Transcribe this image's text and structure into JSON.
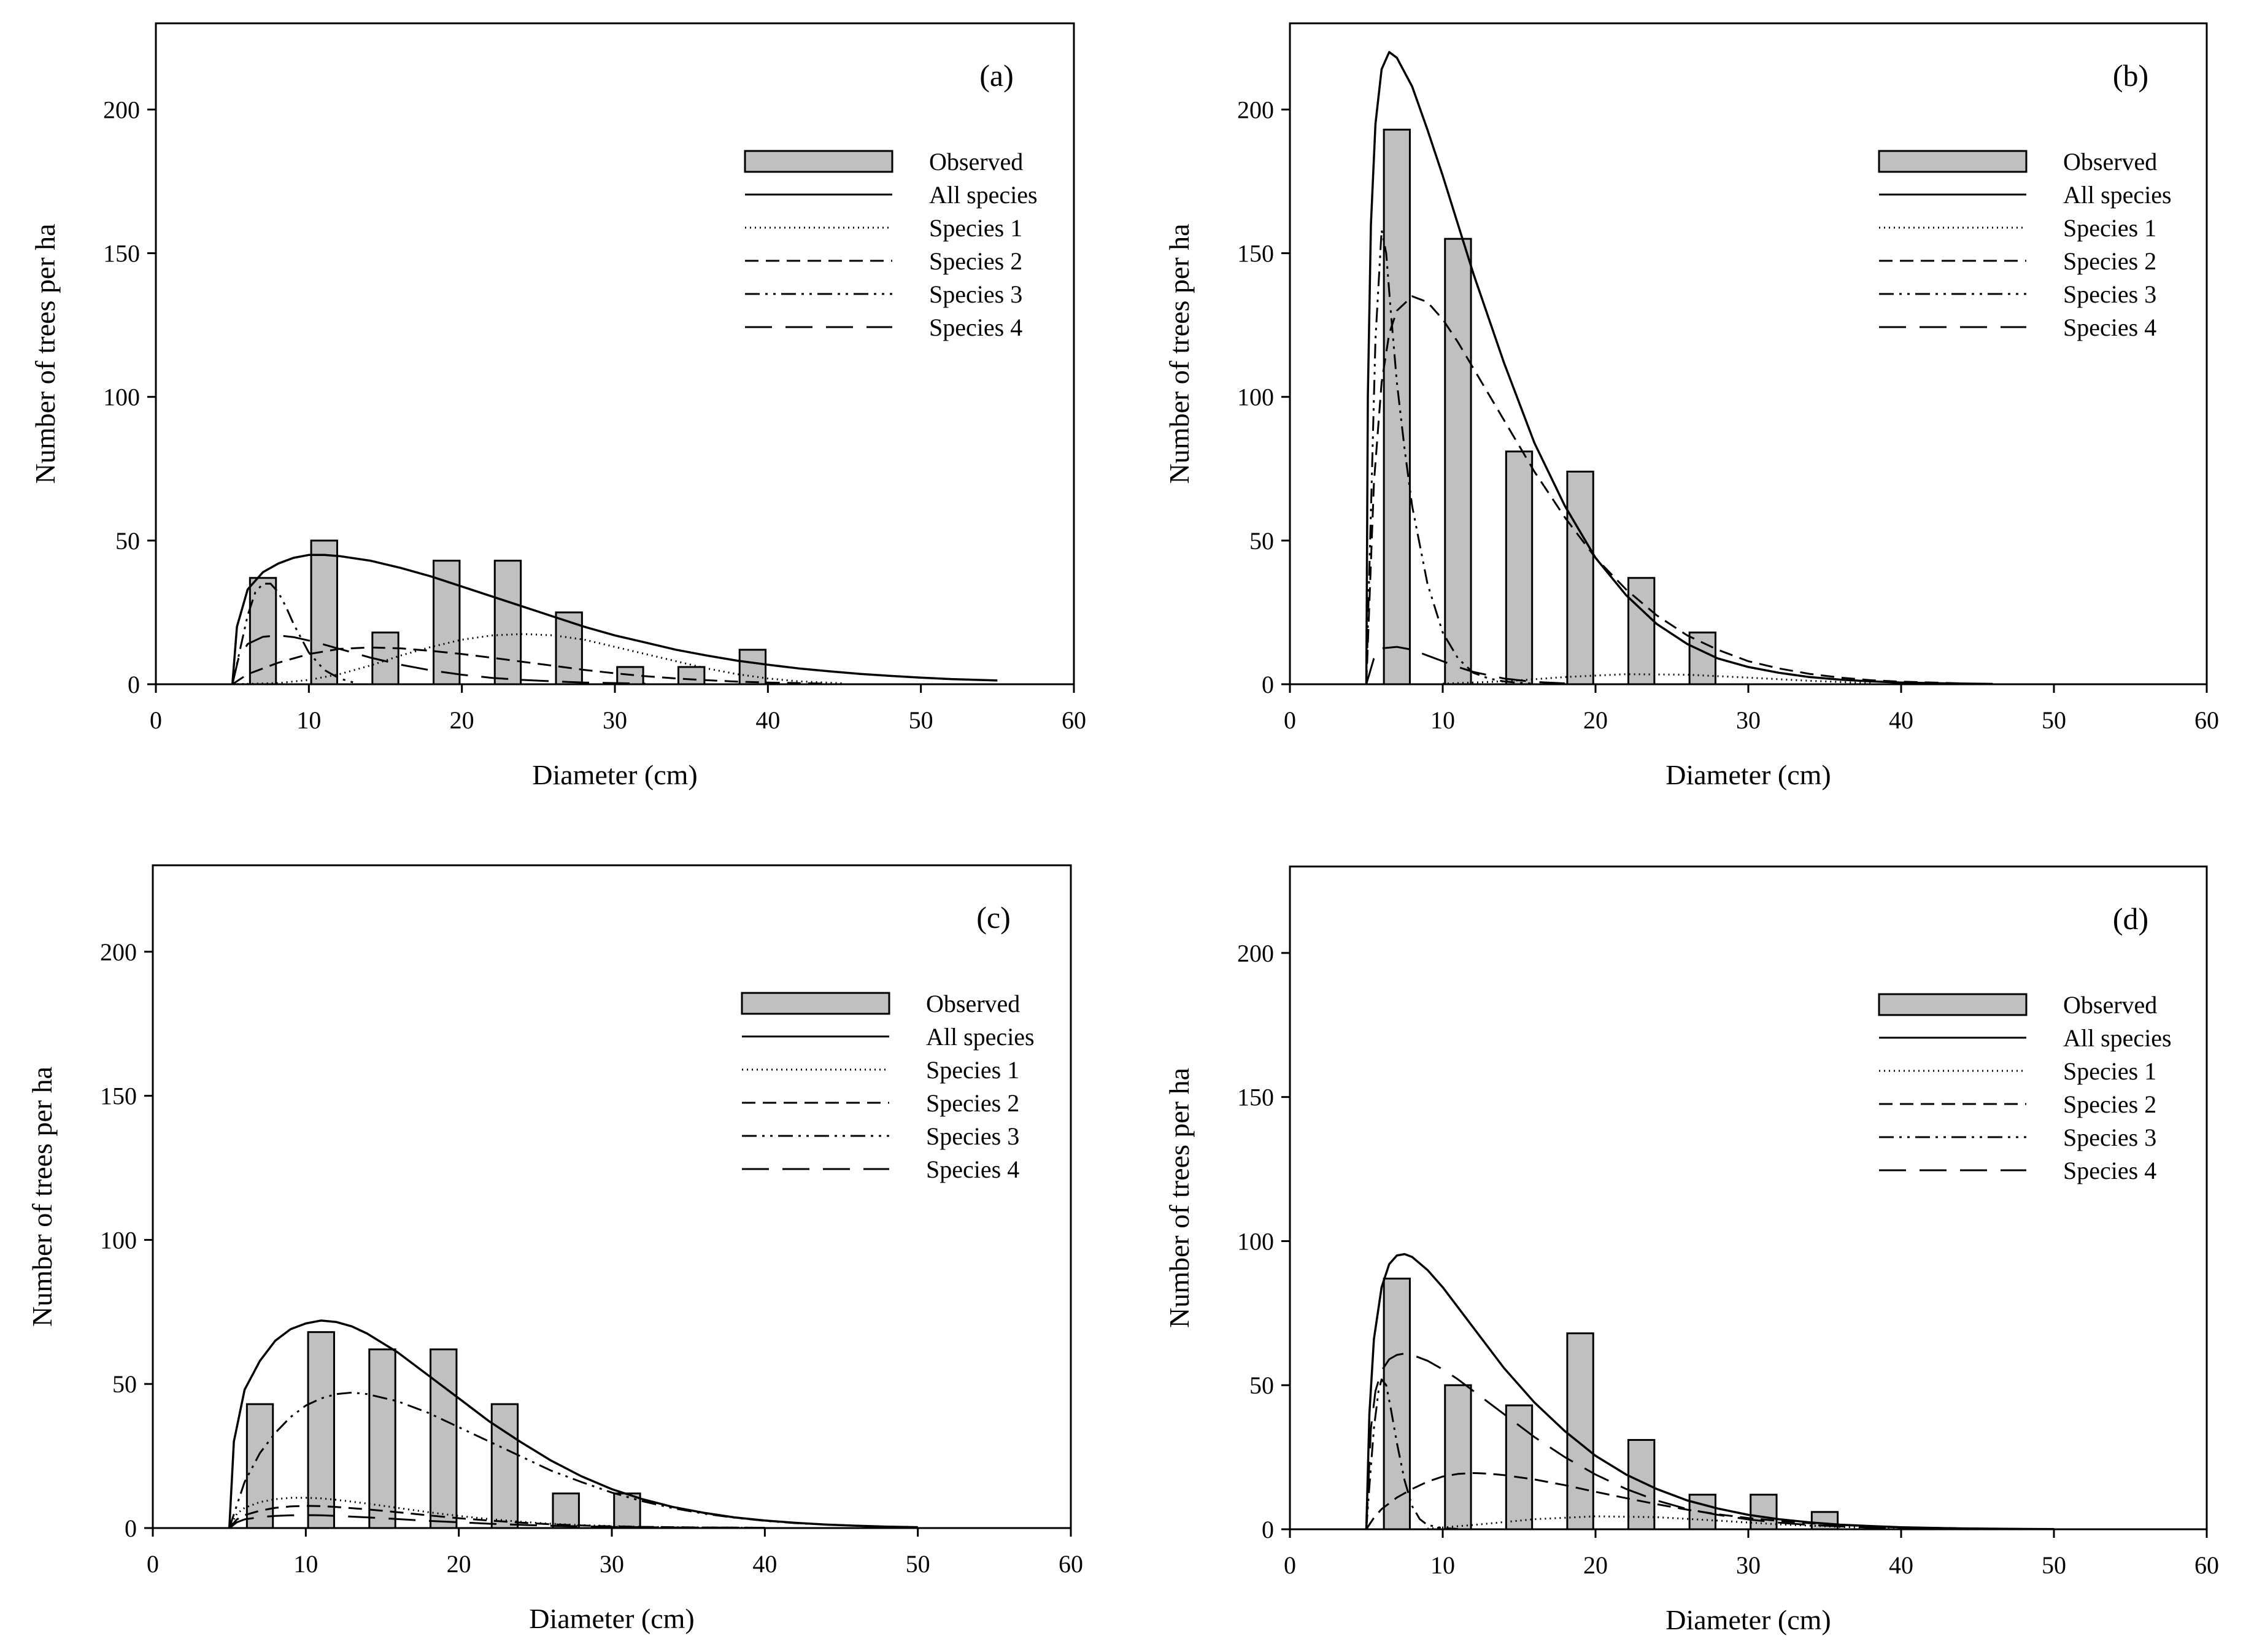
{
  "figure": {
    "legend_labels": [
      "Observed",
      "All species",
      "Species 1",
      "Species 2",
      "Species 3",
      "Species 4"
    ]
  },
  "chart_data": [
    {
      "type": "bar",
      "panel_label": "(a)",
      "xlabel": "Diameter (cm)",
      "ylabel": "Number of trees per ha",
      "xlim": [
        0,
        60
      ],
      "ylim": [
        0,
        230
      ],
      "xticks": [
        0,
        10,
        20,
        30,
        40,
        50,
        60
      ],
      "yticks": [
        0,
        50,
        100,
        150,
        200
      ],
      "legend": "top-right",
      "observed": {
        "x": [
          7,
          11,
          15,
          19,
          23,
          27,
          31,
          35,
          39
        ],
        "values": [
          37,
          50,
          18,
          43,
          43,
          25,
          6,
          6,
          12
        ]
      },
      "series": [
        {
          "name": "All species",
          "x": [
            5,
            5.3,
            6,
            7,
            8,
            9,
            10,
            11,
            12,
            14,
            16,
            18,
            20,
            22,
            24,
            26,
            28,
            30,
            32,
            34,
            36,
            38,
            40,
            42,
            44,
            46,
            48,
            50,
            52,
            55
          ],
          "values": [
            0,
            20,
            33,
            39,
            42,
            44,
            45,
            45,
            44.6,
            43,
            40.5,
            37.5,
            34,
            30.5,
            27,
            23.5,
            20,
            17,
            14.5,
            12,
            10,
            8.2,
            6.8,
            5.5,
            4.5,
            3.6,
            2.9,
            2.3,
            1.8,
            1.3
          ]
        },
        {
          "name": "Species 1",
          "x": [
            5,
            8,
            10,
            12,
            14,
            16,
            18,
            20,
            22,
            24,
            26,
            28,
            30,
            32,
            34,
            36,
            38,
            40,
            42,
            45
          ],
          "values": [
            0,
            0.4,
            1.5,
            3.5,
            6.5,
            10,
            13,
            15.5,
            17,
            17.5,
            17,
            15.5,
            13,
            10.5,
            8,
            5.5,
            3.5,
            2,
            1,
            0.3
          ]
        },
        {
          "name": "Species 2",
          "x": [
            5,
            6,
            8,
            10,
            12,
            14,
            16,
            18,
            20,
            22,
            24,
            26,
            28,
            30,
            32,
            34,
            36,
            38,
            40,
            44
          ],
          "values": [
            0,
            3.5,
            7.5,
            10.5,
            12.3,
            12.8,
            12.5,
            11.6,
            10.5,
            9.2,
            7.8,
            6.4,
            5,
            3.8,
            2.8,
            2,
            1.4,
            0.9,
            0.6,
            0.2
          ]
        },
        {
          "name": "Species 3",
          "x": [
            5,
            5.5,
            6,
            6.5,
            7,
            7.5,
            8,
            8.5,
            9,
            10,
            11,
            12,
            13
          ],
          "values": [
            0,
            12,
            24,
            32,
            35,
            35,
            32,
            27,
            21,
            11,
            5,
            2,
            0.5
          ]
        },
        {
          "name": "Species 4",
          "x": [
            5,
            5.4,
            6,
            7,
            8,
            9,
            10,
            11,
            12,
            14,
            16,
            18,
            20,
            22,
            24,
            26,
            28,
            30,
            32
          ],
          "values": [
            0,
            9,
            14,
            16.5,
            17,
            16.4,
            15.2,
            13.8,
            12.3,
            9.3,
            6.8,
            4.8,
            3.3,
            2.2,
            1.5,
            1,
            0.6,
            0.4,
            0.2
          ]
        }
      ]
    },
    {
      "type": "bar",
      "panel_label": "(b)",
      "xlabel": "Diameter (cm)",
      "ylabel": "Number of trees per ha",
      "xlim": [
        0,
        60
      ],
      "ylim": [
        0,
        230
      ],
      "xticks": [
        0,
        10,
        20,
        30,
        40,
        50,
        60
      ],
      "yticks": [
        0,
        50,
        100,
        150,
        200
      ],
      "legend": "top-right",
      "observed": {
        "x": [
          7,
          11,
          15,
          19,
          23,
          27
        ],
        "values": [
          193,
          155,
          81,
          74,
          37,
          18
        ]
      },
      "series": [
        {
          "name": "All species",
          "x": [
            5,
            5.1,
            5.3,
            5.6,
            6,
            6.5,
            7,
            8,
            9,
            10,
            11,
            12,
            14,
            16,
            18,
            20,
            22,
            24,
            26,
            28,
            30,
            32,
            34,
            36,
            38,
            40,
            43,
            46
          ],
          "values": [
            0,
            100,
            160,
            195,
            214,
            220,
            218,
            208,
            193,
            177,
            160,
            143,
            112,
            84,
            62,
            44,
            31,
            21,
            14,
            9,
            6,
            4,
            2.5,
            1.6,
            1,
            0.6,
            0.3,
            0.1
          ]
        },
        {
          "name": "Species 1",
          "x": [
            10,
            14,
            18,
            22,
            26,
            30,
            34,
            38
          ],
          "values": [
            0.2,
            1,
            2.5,
            3.5,
            3.3,
            2.3,
            1.2,
            0.4
          ]
        },
        {
          "name": "Species 2",
          "x": [
            5,
            5.5,
            6,
            6.5,
            7,
            8,
            9,
            10,
            11,
            12,
            14,
            16,
            18,
            20,
            22,
            24,
            26,
            28,
            30,
            32,
            34,
            36,
            38,
            40,
            44
          ],
          "values": [
            0,
            70,
            105,
            122,
            130,
            135,
            133,
            127,
            119,
            110,
            92,
            74,
            58,
            44,
            33,
            24,
            17,
            12,
            8,
            5.5,
            3.6,
            2.3,
            1.4,
            0.9,
            0.3
          ]
        },
        {
          "name": "Species 3",
          "x": [
            5,
            5.3,
            5.6,
            6,
            6.3,
            6.6,
            7,
            7.5,
            8,
            9,
            10,
            11,
            12,
            13,
            14,
            15,
            16
          ],
          "values": [
            0,
            60,
            120,
            158,
            150,
            130,
            105,
            82,
            62,
            35,
            18,
            9,
            4,
            2,
            1,
            0.5,
            0.2
          ]
        },
        {
          "name": "Species 4",
          "x": [
            5,
            5.5,
            6,
            7,
            8,
            9,
            10,
            11,
            12,
            14,
            16,
            18
          ],
          "values": [
            0,
            9,
            12.5,
            13,
            12,
            10,
            8,
            6,
            4.3,
            2,
            0.8,
            0.3
          ]
        }
      ]
    },
    {
      "type": "bar",
      "panel_label": "(c)",
      "xlabel": "Diameter (cm)",
      "ylabel": "Number of trees per ha",
      "xlim": [
        0,
        60
      ],
      "ylim": [
        0,
        230
      ],
      "xticks": [
        0,
        10,
        20,
        30,
        40,
        50,
        60
      ],
      "yticks": [
        0,
        50,
        100,
        150,
        200
      ],
      "legend": "top-right",
      "observed": {
        "x": [
          7,
          11,
          15,
          19,
          23,
          27,
          31
        ],
        "values": [
          43,
          68,
          62,
          62,
          43,
          12,
          12
        ]
      },
      "series": [
        {
          "name": "All species",
          "x": [
            5,
            5.3,
            6,
            7,
            8,
            9,
            10,
            11,
            12,
            13,
            14,
            16,
            18,
            20,
            22,
            24,
            26,
            28,
            30,
            32,
            34,
            36,
            38,
            40,
            42,
            44,
            46,
            48,
            50
          ],
          "values": [
            0,
            30,
            48,
            58,
            65,
            69,
            71,
            72,
            71.5,
            70,
            67.5,
            61,
            53,
            45,
            37,
            30,
            23.5,
            18,
            13.5,
            10,
            7.3,
            5.3,
            3.7,
            2.6,
            1.8,
            1.2,
            0.8,
            0.5,
            0.3
          ]
        },
        {
          "name": "Species 1",
          "x": [
            5,
            5.5,
            6,
            7,
            8,
            9,
            10,
            11,
            12,
            14,
            16,
            18,
            20,
            22,
            24,
            26,
            28,
            30,
            32,
            34,
            36,
            40
          ],
          "values": [
            0,
            5,
            7,
            9,
            10,
            10.5,
            10.5,
            10.3,
            9.8,
            8.5,
            7,
            5.5,
            4.2,
            3.1,
            2.2,
            1.5,
            1,
            0.7,
            0.4,
            0.3,
            0.2,
            0.1
          ]
        },
        {
          "name": "Species 2",
          "x": [
            5,
            5.5,
            6,
            7,
            8,
            9,
            10,
            11,
            12,
            14,
            16,
            18,
            20,
            22,
            24,
            26,
            28,
            30,
            32,
            34,
            36,
            40
          ],
          "values": [
            0,
            3,
            4.5,
            6,
            7,
            7.5,
            7.7,
            7.6,
            7.3,
            6.5,
            5.5,
            4.4,
            3.4,
            2.6,
            1.9,
            1.3,
            0.9,
            0.6,
            0.4,
            0.3,
            0.2,
            0.1
          ]
        },
        {
          "name": "Species 3",
          "x": [
            5,
            5.5,
            6,
            7,
            8,
            9,
            10,
            11,
            12,
            13,
            14,
            16,
            18,
            20,
            22,
            24,
            26,
            28,
            30,
            32,
            34,
            36,
            38,
            40,
            42,
            44,
            46,
            48,
            50
          ],
          "values": [
            0,
            8,
            16,
            26,
            33,
            38.5,
            42.5,
            45,
            46.5,
            47,
            46.5,
            44,
            40,
            35,
            30,
            25,
            20,
            16,
            12.3,
            9.3,
            6.9,
            5,
            3.6,
            2.5,
            1.7,
            1.2,
            0.8,
            0.5,
            0.3
          ]
        },
        {
          "name": "Species 4",
          "x": [
            5,
            5.5,
            6,
            7,
            8,
            9,
            10,
            11,
            12,
            14,
            16,
            18,
            20,
            22,
            24,
            26,
            28,
            30,
            34,
            40
          ],
          "values": [
            0,
            2,
            3,
            3.8,
            4.2,
            4.4,
            4.5,
            4.4,
            4.2,
            3.7,
            3.1,
            2.5,
            2,
            1.5,
            1.1,
            0.8,
            0.6,
            0.4,
            0.2,
            0.1
          ]
        }
      ]
    },
    {
      "type": "bar",
      "panel_label": "(d)",
      "xlabel": "Diameter (cm)",
      "ylabel": "Number of trees per ha",
      "xlim": [
        0,
        60
      ],
      "ylim": [
        0,
        230
      ],
      "xticks": [
        0,
        10,
        20,
        30,
        40,
        50,
        60
      ],
      "yticks": [
        0,
        50,
        100,
        150,
        200
      ],
      "legend": "top-right",
      "observed": {
        "x": [
          7,
          11,
          15,
          19,
          23,
          27,
          31,
          35
        ],
        "values": [
          87,
          50,
          43,
          68,
          31,
          12,
          12,
          6
        ]
      },
      "series": [
        {
          "name": "All species",
          "x": [
            5,
            5.2,
            5.5,
            6,
            6.5,
            7,
            7.5,
            8,
            9,
            10,
            11,
            12,
            14,
            16,
            18,
            20,
            22,
            24,
            26,
            28,
            30,
            32,
            34,
            36,
            38,
            40,
            44,
            48,
            50
          ],
          "values": [
            0,
            40,
            66,
            84,
            92,
            95,
            95.5,
            94.5,
            90,
            84,
            77,
            70,
            56,
            44,
            34,
            25.5,
            19,
            14,
            10,
            7.2,
            5,
            3.5,
            2.4,
            1.6,
            1.1,
            0.7,
            0.3,
            0.1,
            0.05
          ]
        },
        {
          "name": "Species 1",
          "x": [
            9,
            12,
            16,
            20,
            24,
            28,
            32,
            36,
            40
          ],
          "values": [
            0.2,
            1.5,
            3.5,
            4.5,
            4.2,
            3,
            1.7,
            0.8,
            0.2
          ]
        },
        {
          "name": "Species 2",
          "x": [
            5,
            5.5,
            6,
            7,
            8,
            9,
            10,
            11,
            12,
            13,
            14,
            16,
            18,
            20,
            22,
            24,
            26,
            28,
            30,
            32,
            34,
            36,
            38,
            40,
            44,
            48
          ],
          "values": [
            0,
            4,
            7,
            11,
            14,
            16.5,
            18.3,
            19.2,
            19.5,
            19.3,
            18.8,
            17.3,
            15.3,
            13,
            10.8,
            8.7,
            6.8,
            5.2,
            3.9,
            2.9,
            2.1,
            1.5,
            1,
            0.7,
            0.3,
            0.1
          ]
        },
        {
          "name": "Species 3",
          "x": [
            5,
            5.2,
            5.5,
            5.8,
            6,
            6.3,
            6.6,
            7,
            7.5,
            8,
            8.5,
            9,
            10,
            11
          ],
          "values": [
            0,
            15,
            35,
            48,
            52,
            50,
            42,
            30,
            17,
            8,
            3.5,
            1.5,
            0.4,
            0.1
          ]
        },
        {
          "name": "Species 4",
          "x": [
            5,
            5.3,
            5.6,
            6,
            6.5,
            7,
            7.5,
            8,
            9,
            10,
            11,
            12,
            14,
            16,
            18,
            20,
            22,
            24,
            26,
            28,
            30,
            32,
            34,
            36,
            38,
            40,
            44
          ],
          "values": [
            0,
            35,
            48,
            55,
            59,
            60.5,
            61,
            60.5,
            58.5,
            55.5,
            52,
            48,
            40,
            32,
            25,
            19,
            14,
            10,
            7,
            5,
            3.4,
            2.3,
            1.5,
            1,
            0.6,
            0.4,
            0.1
          ]
        }
      ]
    }
  ]
}
